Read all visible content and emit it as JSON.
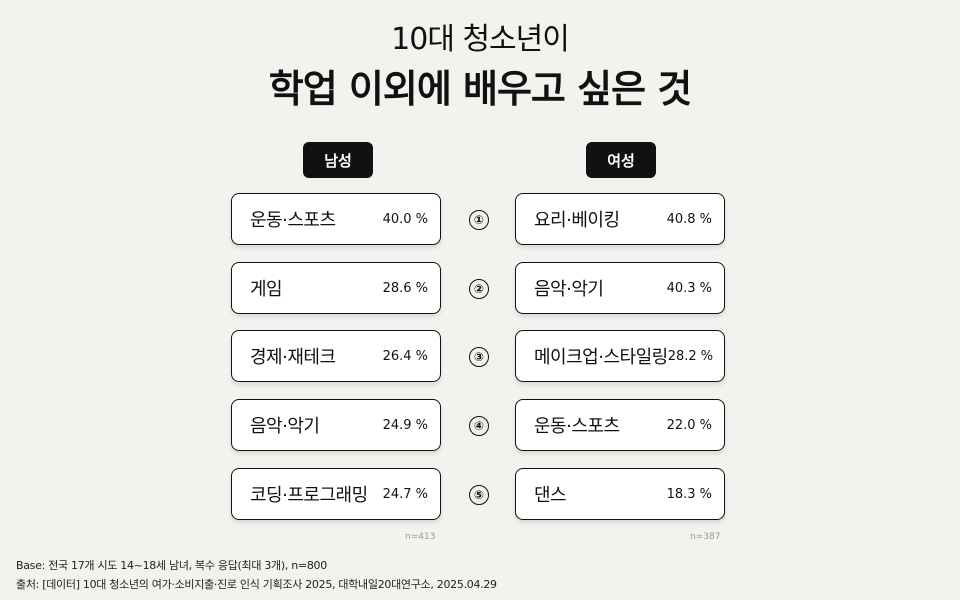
{
  "header": {
    "subtitle": "10대 청소년이",
    "title": "학업 이외에 배우고 싶은 것"
  },
  "chart_data": {
    "type": "table",
    "unit": "%",
    "ranks": [
      "①",
      "②",
      "③",
      "④",
      "⑤"
    ],
    "groups": [
      {
        "name": "남성",
        "n_label": "n=413",
        "items": [
          {
            "label": "운동·스포츠",
            "value": 40.0,
            "value_text": "40.0 %"
          },
          {
            "label": "게임",
            "value": 28.6,
            "value_text": "28.6 %"
          },
          {
            "label": "경제·재테크",
            "value": 26.4,
            "value_text": "26.4 %"
          },
          {
            "label": "음악·악기",
            "value": 24.9,
            "value_text": "24.9 %"
          },
          {
            "label": "코딩·프로그래밍",
            "value": 24.7,
            "value_text": "24.7 %"
          }
        ]
      },
      {
        "name": "여성",
        "n_label": "n=387",
        "items": [
          {
            "label": "요리·베이킹",
            "value": 40.8,
            "value_text": "40.8 %"
          },
          {
            "label": "음악·악기",
            "value": 40.3,
            "value_text": "40.3 %"
          },
          {
            "label": "메이크업·스타일링",
            "value": 28.2,
            "value_text": "28.2 %"
          },
          {
            "label": "운동·스포츠",
            "value": 22.0,
            "value_text": "22.0 %"
          },
          {
            "label": "댄스",
            "value": 18.3,
            "value_text": "18.3 %"
          }
        ]
      }
    ]
  },
  "footer": {
    "base": "Base: 전국 17개 시도 14~18세 남녀, 복수 응답(최대 3개), n=800",
    "source": "출처: [데이터] 10대 청소년의 여가·소비지출·진로 인식 기획조사 2025, 대학내일20대연구소, 2025.04.29"
  },
  "colors": {
    "background": "#f3f2ee",
    "badge": "#111111",
    "card": "#ffffff"
  }
}
